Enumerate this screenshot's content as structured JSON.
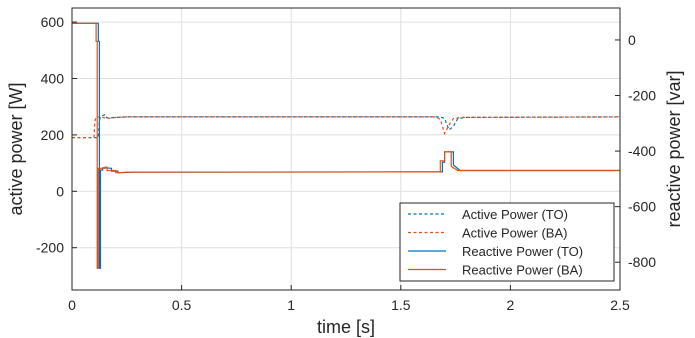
{
  "chart_data": {
    "type": "line",
    "title": "",
    "xlabel": "time [s]",
    "ylabel_left": "active power [W]",
    "ylabel_right": "reactive power [var]",
    "xlim": [
      0,
      2.5
    ],
    "ylim_left": [
      -350,
      650
    ],
    "ylim_right": [
      -900,
      115
    ],
    "x_ticks": [
      0,
      0.5,
      1,
      1.5,
      2,
      2.5
    ],
    "x_tick_labels": [
      "0",
      "0.5",
      "1",
      "1.5",
      "2",
      "2.5"
    ],
    "y_left_ticks": [
      600,
      400,
      200,
      0,
      -200
    ],
    "y_left_tick_labels": [
      "600",
      "400",
      "200",
      "0",
      "-200"
    ],
    "y_right_ticks": [
      0,
      -200,
      -400,
      -600,
      -800
    ],
    "y_right_tick_labels": [
      "0",
      "-200",
      "-400",
      "-600",
      "-800"
    ],
    "grid": true,
    "legend_position": "bottom-right",
    "colors": {
      "TO": "#0072BD",
      "BA": "#D95319"
    },
    "series": [
      {
        "name": "Active Power (TO)",
        "axis": "left",
        "style": "dashed",
        "color": "#0072BD",
        "x": [
          0,
          0.12,
          0.125,
          0.13,
          0.15,
          0.16,
          0.2,
          0.25,
          1.6,
          1.68,
          1.7,
          1.72,
          1.74,
          1.76,
          1.8,
          2.5
        ],
        "y": [
          190,
          190,
          250,
          265,
          272,
          260,
          262,
          264,
          264,
          264,
          258,
          218,
          230,
          258,
          262,
          264
        ]
      },
      {
        "name": "Active Power (BA)",
        "axis": "left",
        "style": "dashed",
        "color": "#D95319",
        "x": [
          0,
          0.1,
          0.105,
          0.11,
          0.14,
          0.16,
          0.2,
          0.25,
          1.6,
          1.66,
          1.68,
          1.7,
          1.72,
          1.74,
          1.78,
          2.5
        ],
        "y": [
          190,
          190,
          250,
          265,
          262,
          258,
          262,
          264,
          264,
          264,
          255,
          205,
          235,
          258,
          262,
          264
        ]
      },
      {
        "name": "Reactive Power (TO)",
        "axis": "right",
        "style": "solid",
        "color": "#0072BD",
        "x": [
          0,
          0.12,
          0.12,
          0.125,
          0.125,
          0.13,
          0.13,
          0.14,
          0.14,
          0.15,
          0.15,
          0.18,
          0.18,
          0.21,
          0.21,
          0.28,
          1.6,
          1.69,
          1.69,
          1.7,
          1.7,
          1.74,
          1.74,
          1.77,
          2.5
        ],
        "y": [
          60,
          60,
          -5,
          -5,
          -822,
          -822,
          -468,
          -468,
          -460,
          -460,
          -460,
          -462,
          -472,
          -472,
          -478,
          -476,
          -475,
          -475,
          -440,
          -440,
          -403,
          -403,
          -450,
          -470,
          -470
        ]
      },
      {
        "name": "Reactive Power (BA)",
        "axis": "right",
        "style": "solid",
        "color": "#D95319",
        "x": [
          0,
          0.11,
          0.11,
          0.115,
          0.115,
          0.12,
          0.12,
          0.15,
          0.15,
          0.16,
          0.16,
          0.2,
          0.2,
          0.25,
          1.6,
          1.68,
          1.68,
          1.7,
          1.7,
          1.73,
          1.73,
          1.76,
          2.5
        ],
        "y": [
          60,
          60,
          -5,
          -5,
          -822,
          -822,
          -462,
          -462,
          -458,
          -458,
          -470,
          -470,
          -478,
          -476,
          -475,
          -475,
          -435,
          -435,
          -403,
          -403,
          -455,
          -470,
          -470
        ]
      }
    ]
  }
}
